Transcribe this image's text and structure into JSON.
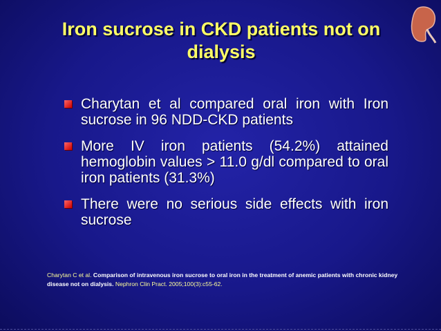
{
  "slide": {
    "title": "Iron sucrose in CKD patients not on dialysis",
    "bullets": [
      "Charytan et al compared oral iron with Iron sucrose in 96 NDD-CKD patients",
      "More IV iron patients (54.2%) attained hemoglobin values > 11.0 g/dl compared to oral iron patients (31.3%)",
      "There were no serious side effects with iron sucrose"
    ],
    "citation": {
      "authors": "Charytan C et al.",
      "article": "Comparison of intravenous iron sucrose to oral iron in the treatment of anemic patients with chronic kidney disease not on dialysis.",
      "source": "Nephron Clin Pract. 2005;100(3):c55-62."
    }
  }
}
